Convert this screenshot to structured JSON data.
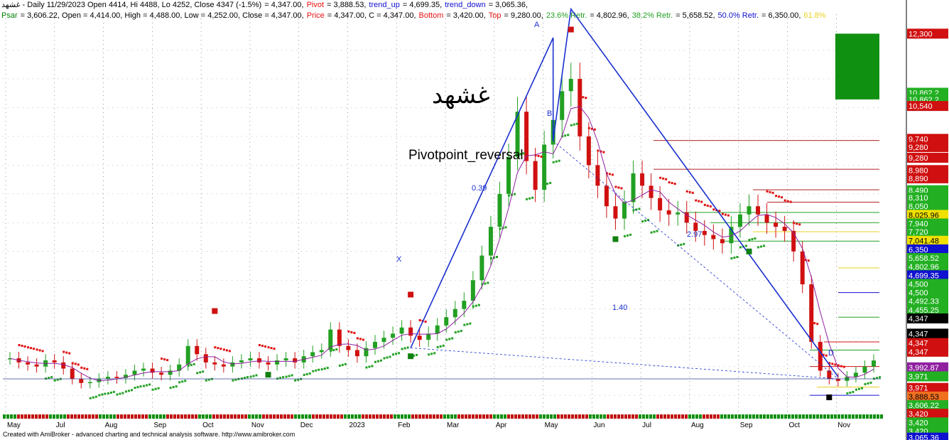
{
  "header": {
    "line1": [
      {
        "text": "غشهد - Daily 11/29/2023 Open 4414, Hi 4488, Lo 4252, Close 4347 (-1.5%)",
        "color": "#000000"
      },
      {
        "text": "= 4,347.00,",
        "color": "#000000"
      },
      {
        "text": "Pivot",
        "color": "#e81010"
      },
      {
        "text": "= 3,888.53,",
        "color": "#000000"
      },
      {
        "text": "trend_up",
        "color": "#1010d0"
      },
      {
        "text": "= 4,699.35,",
        "color": "#000000"
      },
      {
        "text": "trend_down",
        "color": "#1010d0"
      },
      {
        "text": "= 3,065.36,",
        "color": "#000000"
      }
    ],
    "line2": [
      {
        "text": "Psar",
        "color": "#008000"
      },
      {
        "text": "= 3,606.22, Open = 4,414.00, High = 4,488.00, Low = 4,252.00, Close = 4,347.00,",
        "color": "#000000"
      },
      {
        "text": "Price",
        "color": "#e81010"
      },
      {
        "text": "= 4,347.00, C = 4,347.00,",
        "color": "#000000"
      },
      {
        "text": "Bottom",
        "color": "#e81010"
      },
      {
        "text": "= 3,420.00,",
        "color": "#000000"
      },
      {
        "text": "Top",
        "color": "#e81010"
      },
      {
        "text": "= 9,280.00,",
        "color": "#000000"
      },
      {
        "text": "23.6% Retr.",
        "color": "#22a022"
      },
      {
        "text": "= 4,802.96,",
        "color": "#000000"
      },
      {
        "text": "38.2% Retr.",
        "color": "#22a022"
      },
      {
        "text": "= 5,658.52,",
        "color": "#000000"
      },
      {
        "text": "50.0% Retr.",
        "color": "#1010d0"
      },
      {
        "text": "= 6,350.00,",
        "color": "#000000"
      },
      {
        "text": "61.8%",
        "color": "#e8d020"
      }
    ]
  },
  "chart_data": {
    "type": "candlestick",
    "symbol": "غشهد",
    "title_overlay": "Pivotpoint_reversal",
    "x_labels": [
      "May",
      "Jul",
      "Aug",
      "Sep",
      "Oct",
      "Nov",
      "Dec",
      "2023",
      "Feb",
      "Mar",
      "Apr",
      "May",
      "Jun",
      "Jul",
      "Aug",
      "Sep",
      "Oct",
      "Nov"
    ],
    "price_range": [
      3000,
      12600
    ],
    "annotations": [
      "0.39",
      "2.97",
      "1.40",
      "A",
      "B",
      "X",
      "D"
    ],
    "close_series": [
      4400,
      4300,
      4250,
      4200,
      4350,
      4300,
      4150,
      3900,
      3800,
      3820,
      3900,
      3950,
      3920,
      4000,
      4100,
      4150,
      4050,
      4000,
      4100,
      4250,
      4700,
      4500,
      4300,
      4250,
      4200,
      4300,
      4350,
      4400,
      4300,
      4250,
      4350,
      4400,
      4300,
      4450,
      4550,
      4600,
      5100,
      4700,
      4600,
      4450,
      4650,
      4800,
      4900,
      5000,
      5150,
      4950,
      4850,
      5000,
      5200,
      5400,
      5600,
      5800,
      6300,
      6900,
      7600,
      8400,
      9300,
      10400,
      9200,
      8500,
      9600,
      10200,
      10900,
      11200,
      9800,
      9100,
      8600,
      8100,
      7800,
      8200,
      8900,
      8600,
      8300,
      8000,
      7900,
      7950,
      7700,
      7500,
      7400,
      7300,
      7200,
      7600,
      7900,
      8100,
      7900,
      7700,
      7600,
      7500,
      7000,
      6200,
      4800,
      4100,
      3900,
      3850,
      3950,
      4050,
      4200,
      4347
    ],
    "price_axis_tags": [
      {
        "label": "12,300",
        "value": 12300,
        "bg": "#d01010",
        "fg": "#ffffff"
      },
      {
        "label": "10,862.2",
        "value": 10862.2,
        "bg": "#22b022",
        "fg": "#ffffff"
      },
      {
        "label": "10,862.2",
        "value": 10700,
        "bg": "#22b022",
        "fg": "#ffffff"
      },
      {
        "label": "10,540",
        "value": 10540,
        "bg": "#d01010",
        "fg": "#ffffff"
      },
      {
        "label": "9,740",
        "value": 9740,
        "bg": "#d01010",
        "fg": "#ffffff"
      },
      {
        "label": "9,280",
        "value": 9540,
        "bg": "#d01010",
        "fg": "#ffffff"
      },
      {
        "label": "9,280",
        "value": 9280,
        "bg": "#d01010",
        "fg": "#ffffff"
      },
      {
        "label": "8,980",
        "value": 8980,
        "bg": "#d01010",
        "fg": "#ffffff"
      },
      {
        "label": "8,890",
        "value": 8780,
        "bg": "#d01010",
        "fg": "#ffffff"
      },
      {
        "label": "8,490",
        "value": 8490,
        "bg": "#22b022",
        "fg": "#ffffff"
      },
      {
        "label": "8,310",
        "value": 8310,
        "bg": "#22b022",
        "fg": "#ffffff"
      },
      {
        "label": "8,050",
        "value": 8100,
        "bg": "#22b022",
        "fg": "#ffffff"
      },
      {
        "label": "8,025.96",
        "value": 7890,
        "bg": "#f0e000",
        "fg": "#000000"
      },
      {
        "label": "7,940",
        "value": 7680,
        "bg": "#22b022",
        "fg": "#ffffff"
      },
      {
        "label": "7,720",
        "value": 7480,
        "bg": "#22b022",
        "fg": "#ffffff"
      },
      {
        "label": "7,041.48",
        "value": 7260,
        "bg": "#f0e000",
        "fg": "#000000"
      },
      {
        "label": "6,350",
        "value": 7050,
        "bg": "#1010d0",
        "fg": "#ffffff"
      },
      {
        "label": "5,658.52",
        "value": 6840,
        "bg": "#22b022",
        "fg": "#ffffff"
      },
      {
        "label": "4,802.96",
        "value": 6630,
        "bg": "#22b022",
        "fg": "#ffffff"
      },
      {
        "label": "4,699.35",
        "value": 6420,
        "bg": "#1010d0",
        "fg": "#ffffff"
      },
      {
        "label": "4,500",
        "value": 6210,
        "bg": "#22b022",
        "fg": "#ffffff"
      },
      {
        "label": "4,500",
        "value": 6000,
        "bg": "#22b022",
        "fg": "#ffffff"
      },
      {
        "label": "4,492.33",
        "value": 5790,
        "bg": "#22b022",
        "fg": "#ffffff"
      },
      {
        "label": "4,455.25",
        "value": 5580,
        "bg": "#22b022",
        "fg": "#ffffff"
      },
      {
        "label": "4,347",
        "value": 5370,
        "bg": "#000000",
        "fg": "#ffffff"
      },
      {
        "label": "4,347",
        "value": 5000,
        "bg": "#000000",
        "fg": "#ffffff"
      },
      {
        "label": "4,347",
        "value": 4770,
        "bg": "#d01010",
        "fg": "#ffffff"
      },
      {
        "label": "4,347",
        "value": 4560,
        "bg": "#d01010",
        "fg": "#ffffff"
      },
      {
        "label": "3,992.87",
        "value": 4180,
        "bg": "#9020a0",
        "fg": "#ffffff"
      },
      {
        "label": "3,971",
        "value": 3960,
        "bg": "#22b022",
        "fg": "#ffffff"
      },
      {
        "label": "3,971",
        "value": 3680,
        "bg": "#d01010",
        "fg": "#ffffff"
      },
      {
        "label": "3,888.53",
        "value": 3470,
        "bg": "#f07020",
        "fg": "#000000"
      },
      {
        "label": "3,606.22",
        "value": 3260,
        "bg": "#22b022",
        "fg": "#ffffff"
      },
      {
        "label": "3,420",
        "value": 3050,
        "bg": "#d01010",
        "fg": "#ffffff"
      },
      {
        "label": "3,420",
        "value": 2840,
        "bg": "#22b022",
        "fg": "#ffffff"
      },
      {
        "label": "3,420",
        "value": 2630,
        "bg": "#22b022",
        "fg": "#ffffff"
      },
      {
        "label": "3,065.36",
        "value": 2470,
        "bg": "#1010d0",
        "fg": "#ffffff"
      }
    ],
    "colors": {
      "up": "#22a022",
      "down": "#d01010",
      "trend": "#1a30d0",
      "ma": "#9020a0",
      "psar_up": "#22a022",
      "psar_down": "#e01010"
    }
  },
  "footer": "Created with AmiBroker - advanced charting and technical analysis software. http://www.amibroker.com"
}
